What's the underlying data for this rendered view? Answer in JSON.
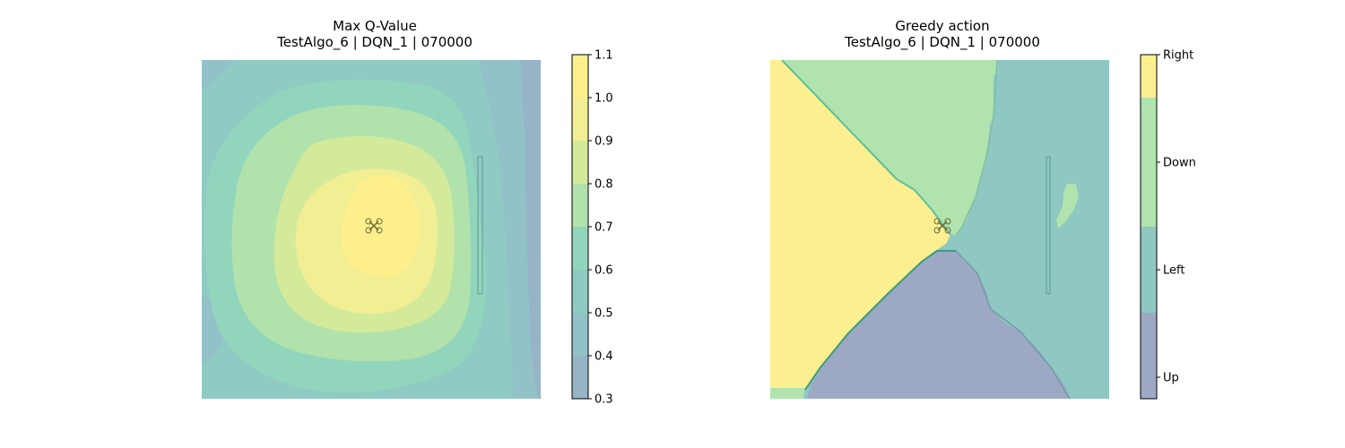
{
  "colors": {
    "c_03": "#96b4c6",
    "c_04": "#92c2c8",
    "c_05": "#8fcbc3",
    "c_06": "#92d5bd",
    "c_07": "#b1e2ac",
    "c_08": "#d3ea9a",
    "c_09": "#f1ee93",
    "c_10": "#fcef8c",
    "act_up": "#9da8c4",
    "act_left": "#8fc7c2",
    "act_down": "#b0e3ae",
    "act_right": "#fbef8f",
    "frame": "#000000"
  },
  "chart_data": [
    {
      "type": "heatmap",
      "title": "Max Q-Value",
      "subtitle": "TestAlgo_6 | DQN_1 | 070000",
      "colorbar": {
        "ticks": [
          "0.3",
          "0.4",
          "0.5",
          "0.6",
          "0.7",
          "0.8",
          "0.9",
          "1.0",
          "1.1"
        ],
        "range": [
          0.3,
          1.1
        ],
        "levels": [
          0.3,
          0.4,
          0.5,
          0.6,
          0.7,
          0.8,
          0.9,
          1.0,
          1.1
        ]
      },
      "peak": {
        "value": 1.05,
        "location": "center, marked by drone icon"
      },
      "grid": false,
      "axes_visible": false
    },
    {
      "type": "heatmap",
      "title": "Greedy action",
      "subtitle": "TestAlgo_6 | DQN_1 | 070000",
      "colorbar": {
        "ticks": [
          "Up",
          "Left",
          "Down",
          "Right"
        ],
        "categories": [
          "Up",
          "Left",
          "Down",
          "Right"
        ]
      },
      "regions": [
        {
          "action": "Right",
          "location": "left wedge"
        },
        {
          "action": "Down",
          "location": "top wedge and bottom-left corner"
        },
        {
          "action": "Left",
          "location": "right side"
        },
        {
          "action": "Up",
          "location": "bottom wedge"
        }
      ],
      "grid": false,
      "axes_visible": false
    }
  ]
}
